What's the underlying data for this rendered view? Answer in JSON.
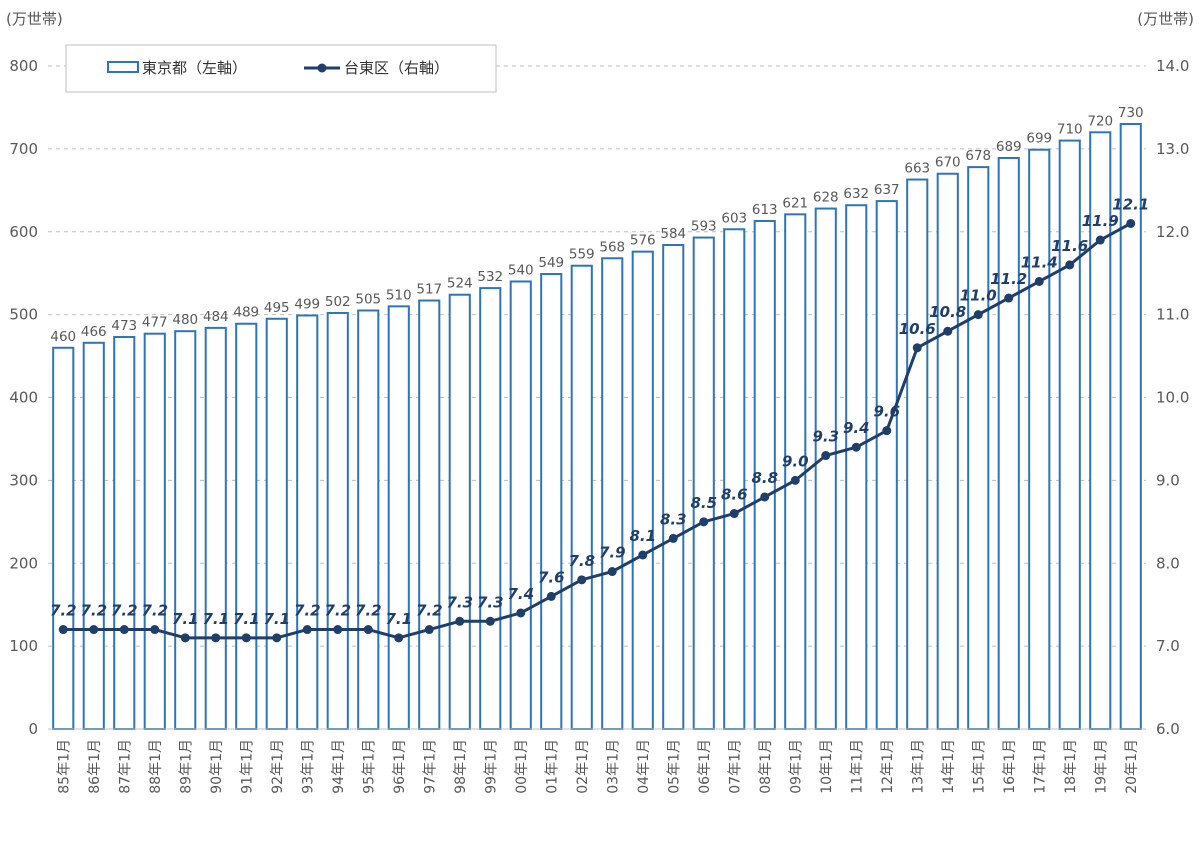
{
  "chart_data": {
    "type": "bar+line",
    "left_unit": "(万世帯)",
    "right_unit": "(万世帯)",
    "left_ticks": [
      "0",
      "100",
      "200",
      "300",
      "400",
      "500",
      "600",
      "700",
      "800"
    ],
    "right_ticks": [
      "6.0",
      "7.0",
      "8.0",
      "9.0",
      "10.0",
      "11.0",
      "12.0",
      "13.0",
      "14.0"
    ],
    "ylim_left": [
      0,
      800
    ],
    "ylim_right": [
      6.0,
      14.0
    ],
    "grid": "horizontal dashed",
    "legend_position": "top-left",
    "categories": [
      "85年1月",
      "86年1月",
      "87年1月",
      "88年1月",
      "89年1月",
      "90年1月",
      "91年1月",
      "92年1月",
      "93年1月",
      "94年1月",
      "95年1月",
      "96年1月",
      "97年1月",
      "98年1月",
      "99年1月",
      "00年1月",
      "01年1月",
      "02年1月",
      "03年1月",
      "04年1月",
      "05年1月",
      "06年1月",
      "07年1月",
      "08年1月",
      "09年1月",
      "10年1月",
      "11年1月",
      "12年1月",
      "13年1月",
      "14年1月",
      "15年1月",
      "16年1月",
      "17年1月",
      "18年1月",
      "19年1月",
      "20年1月"
    ],
    "series": [
      {
        "name": "東京都（左軸）",
        "type": "bar",
        "axis": "left",
        "color": "#2e75b6",
        "values": [
          460,
          466,
          473,
          477,
          480,
          484,
          489,
          495,
          499,
          502,
          505,
          510,
          517,
          524,
          532,
          540,
          549,
          559,
          568,
          576,
          584,
          593,
          603,
          613,
          621,
          628,
          632,
          637,
          663,
          670,
          678,
          689,
          699,
          710,
          720,
          730
        ]
      },
      {
        "name": "台東区（右軸）",
        "type": "line",
        "axis": "right",
        "color": "#1f3f6a",
        "values": [
          7.2,
          7.2,
          7.2,
          7.2,
          7.1,
          7.1,
          7.1,
          7.1,
          7.2,
          7.2,
          7.2,
          7.1,
          7.2,
          7.3,
          7.3,
          7.4,
          7.6,
          7.8,
          7.9,
          8.1,
          8.3,
          8.5,
          8.6,
          8.8,
          9.0,
          9.3,
          9.4,
          9.6,
          10.6,
          10.8,
          11.0,
          11.2,
          11.4,
          11.6,
          11.9,
          12.1
        ],
        "labels": [
          "7.2",
          "7.2",
          "7.2",
          "7.2",
          "7.1",
          "7.1",
          "7.1",
          "7.1",
          "7.2",
          "7.2",
          "7.2",
          "7.1",
          "7.2",
          "7.3",
          "7.3",
          "7.4",
          "7.6",
          "7.8",
          "7.9",
          "8.1",
          "8.3",
          "8.5",
          "8.6",
          "8.8",
          "9.0",
          "9.3",
          "9.4",
          "9.6",
          "10.6",
          "10.8",
          "11.0",
          "11.2",
          "11.4",
          "11.6",
          "11.9",
          "12.1"
        ]
      }
    ]
  }
}
